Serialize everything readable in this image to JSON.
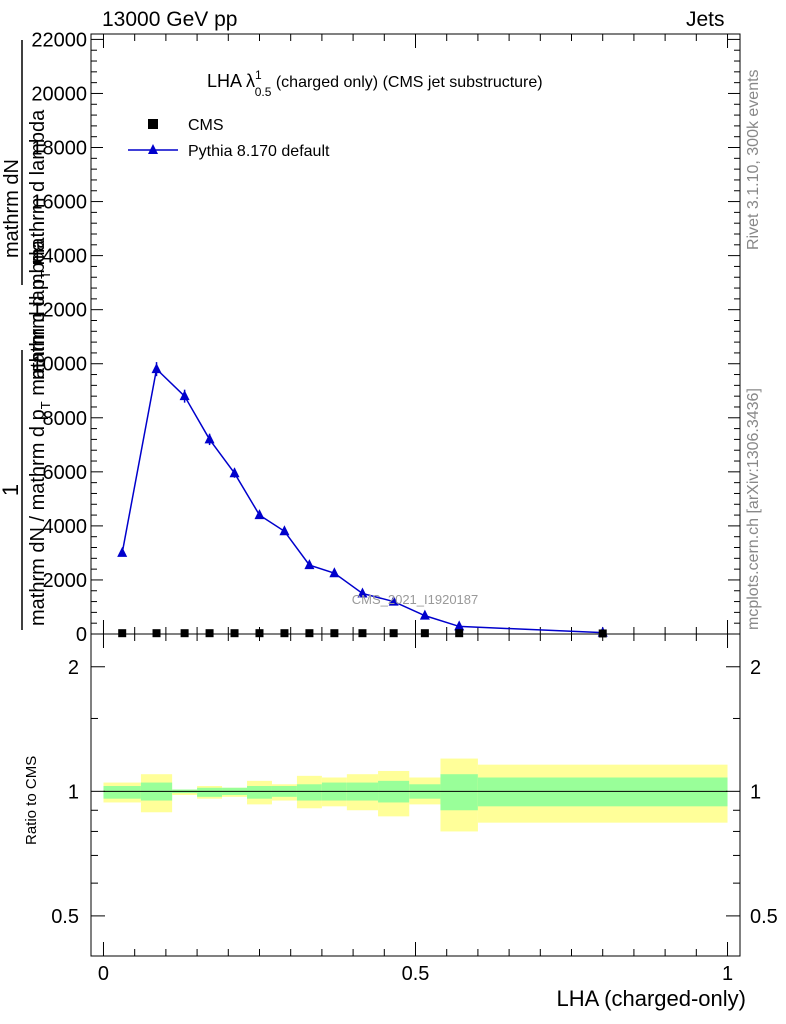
{
  "header": {
    "left": "13000 GeV pp",
    "right": "Jets"
  },
  "side_labels": {
    "rivet": "Rivet 3.1.10,  300k events",
    "mcplots": "mcplots.cern.ch [arXiv:1306.3436]"
  },
  "colors": {
    "mc_line": "#0000cc",
    "band_stat": "#99ff99",
    "band_total": "#ffff99",
    "data_marker": "#000000"
  },
  "chart_data": [
    {
      "type": "line",
      "panel": "main",
      "title_main": "LHA λ",
      "title_sup": "1",
      "title_sub": "0.5",
      "title_rest": " (charged only) (CMS jet substructure)",
      "watermark": "CMS_2021_I1920187",
      "ylabel_num": "1",
      "ylabel_den": "mathrm dN / mathrm d p",
      "ylabel_den_sub": "T",
      "ylabel_den_rest": " mathrm d lambda",
      "ylabel_top": "mathrm dN",
      "ylabel_mid": "mathrm d p",
      "ylim": [
        0,
        22200
      ],
      "xlim": [
        -0.02,
        1.02
      ],
      "yticks": [
        0,
        2000,
        4000,
        6000,
        8000,
        10000,
        12000,
        14000,
        16000,
        18000,
        20000,
        22000
      ],
      "ytick_labels": [
        "0",
        "2000",
        "4000",
        "6000",
        "8000",
        "10000",
        "12000",
        "14000",
        "16000",
        "18000",
        "20000",
        "22000"
      ],
      "legend_position": "top-left",
      "series": [
        {
          "name": "CMS",
          "marker": "square",
          "x": [
            0.03,
            0.085,
            0.13,
            0.17,
            0.21,
            0.25,
            0.29,
            0.33,
            0.37,
            0.415,
            0.465,
            0.515,
            0.57,
            0.8
          ],
          "y": [
            30,
            30,
            30,
            30,
            30,
            30,
            30,
            30,
            30,
            30,
            30,
            30,
            30,
            20
          ]
        },
        {
          "name": "Pythia 8.170 default",
          "marker": "triangle",
          "x": [
            0.03,
            0.085,
            0.13,
            0.17,
            0.21,
            0.25,
            0.29,
            0.33,
            0.37,
            0.415,
            0.465,
            0.515,
            0.57,
            0.8
          ],
          "y": [
            3000,
            9800,
            8800,
            7200,
            5950,
            4400,
            3800,
            2550,
            2250,
            1500,
            1200,
            680,
            280,
            50
          ],
          "yerr": [
            60,
            260,
            240,
            210,
            170,
            140,
            120,
            90,
            80,
            60,
            50,
            30,
            15,
            5
          ]
        }
      ]
    },
    {
      "type": "area",
      "panel": "ratio",
      "ylabel": "Ratio to CMS",
      "ylim": [
        0.4,
        2.4
      ],
      "log_y": true,
      "yticks": [
        0.5,
        1,
        2
      ],
      "ytick_labels": [
        "0.5",
        "1",
        "2"
      ],
      "xlim": [
        -0.02,
        1.02
      ],
      "xticks": [
        0,
        0.5,
        1
      ],
      "xtick_labels": [
        "0",
        "0.5",
        "1"
      ],
      "xlabel": "LHA (charged-only)",
      "bins": [
        {
          "lo": 0.0,
          "hi": 0.06,
          "stat": [
            0.96,
            1.03
          ],
          "total": [
            0.94,
            1.05
          ]
        },
        {
          "lo": 0.06,
          "hi": 0.11,
          "stat": [
            0.95,
            1.05
          ],
          "total": [
            0.89,
            1.1
          ]
        },
        {
          "lo": 0.11,
          "hi": 0.15,
          "stat": [
            0.99,
            1.01
          ],
          "total": [
            0.98,
            1.01
          ]
        },
        {
          "lo": 0.15,
          "hi": 0.19,
          "stat": [
            0.97,
            1.02
          ],
          "total": [
            0.96,
            1.03
          ]
        },
        {
          "lo": 0.19,
          "hi": 0.23,
          "stat": [
            0.98,
            1.02
          ],
          "total": [
            0.97,
            1.02
          ]
        },
        {
          "lo": 0.23,
          "hi": 0.27,
          "stat": [
            0.96,
            1.03
          ],
          "total": [
            0.93,
            1.06
          ]
        },
        {
          "lo": 0.27,
          "hi": 0.31,
          "stat": [
            0.97,
            1.03
          ],
          "total": [
            0.95,
            1.04
          ]
        },
        {
          "lo": 0.31,
          "hi": 0.35,
          "stat": [
            0.95,
            1.04
          ],
          "total": [
            0.91,
            1.09
          ]
        },
        {
          "lo": 0.35,
          "hi": 0.39,
          "stat": [
            0.95,
            1.05
          ],
          "total": [
            0.92,
            1.08
          ]
        },
        {
          "lo": 0.39,
          "hi": 0.44,
          "stat": [
            0.95,
            1.05
          ],
          "total": [
            0.9,
            1.1
          ]
        },
        {
          "lo": 0.44,
          "hi": 0.49,
          "stat": [
            0.94,
            1.06
          ],
          "total": [
            0.87,
            1.12
          ]
        },
        {
          "lo": 0.49,
          "hi": 0.54,
          "stat": [
            0.96,
            1.04
          ],
          "total": [
            0.93,
            1.08
          ]
        },
        {
          "lo": 0.54,
          "hi": 0.6,
          "stat": [
            0.9,
            1.1
          ],
          "total": [
            0.8,
            1.2
          ]
        },
        {
          "lo": 0.6,
          "hi": 1.0,
          "stat": [
            0.92,
            1.08
          ],
          "total": [
            0.84,
            1.16
          ]
        }
      ]
    }
  ]
}
